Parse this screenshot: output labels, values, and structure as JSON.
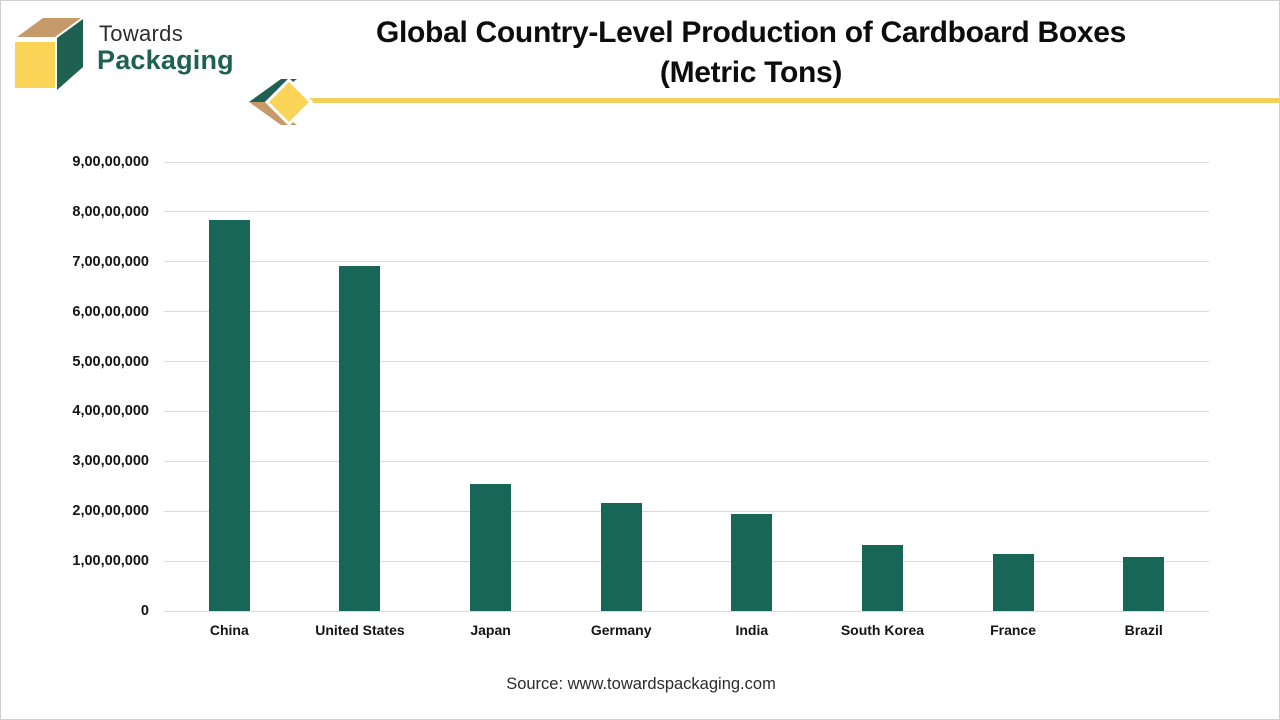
{
  "logo": {
    "brand_top": "Towards",
    "brand_bottom": "Packaging",
    "colors": {
      "green": "#1e6152",
      "tan": "#c79a6a",
      "yellow": "#f9d456",
      "text_dark": "#2e2e2e"
    }
  },
  "header": {
    "title_line1": "Global Country-Level Production of Cardboard Boxes",
    "title_line2": "(Metric Tons)",
    "underline_color": "#f2d05e"
  },
  "chart_data": {
    "type": "bar",
    "title": "Global Country-Level Production of Cardboard Boxes (Metric Tons)",
    "categories": [
      "China",
      "United States",
      "Japan",
      "Germany",
      "India",
      "South Korea",
      "France",
      "Brazil"
    ],
    "values": [
      78400000,
      69200000,
      25400000,
      21700000,
      19400000,
      13300000,
      11500000,
      10900000
    ],
    "value_labels_indian_format": [
      "7,84,00,000",
      "6,92,00,000",
      "2,54,00,000",
      "2,17,00,000",
      "1,94,00,000",
      "1,33,00,000",
      "1,15,00,000",
      "1,09,00,000"
    ],
    "bar_color": "#176658",
    "xlabel": "",
    "ylabel": "",
    "ylim": [
      0,
      90000000
    ],
    "y_tick_step": 10000000,
    "y_tick_labels": [
      "0",
      "1,00,00,000",
      "2,00,00,000",
      "3,00,00,000",
      "4,00,00,000",
      "5,00,00,000",
      "6,00,00,000",
      "7,00,00,000",
      "8,00,00,000",
      "9,00,00,000"
    ],
    "grid": true,
    "gridline_color": "#d9d9d9",
    "legend_position": "none"
  },
  "footer": {
    "source_text": "Source: www.towardspackaging.com"
  }
}
